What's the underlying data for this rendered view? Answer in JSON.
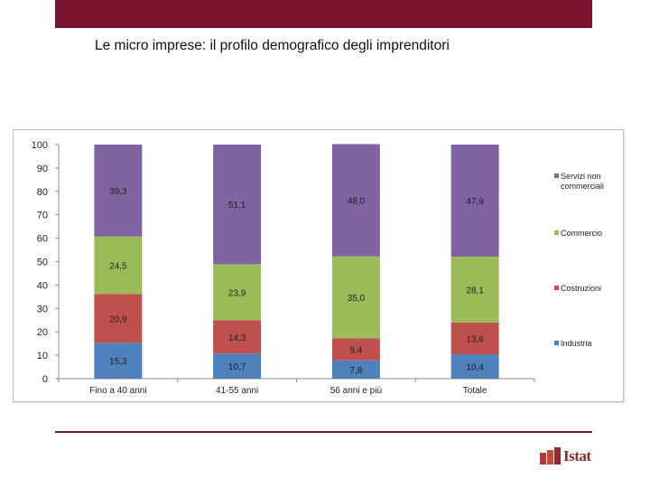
{
  "slide": {
    "title": "Le micro imprese: il profilo demografico degli imprenditori"
  },
  "logo": {
    "text": "Istat"
  },
  "colors": {
    "header_bar": "#7a1530",
    "Industria": "#4f81bd",
    "Costruzioni": "#c0504d",
    "Commercio": "#9bbb59",
    "Servizi non commerciali": "#8064a2"
  },
  "chart_data": {
    "type": "bar",
    "stacked": true,
    "categories": [
      "Fino a 40 anni",
      "41-55 anni",
      "56 anni e più",
      "Totale"
    ],
    "series": [
      {
        "name": "Industria",
        "values": [
          15.3,
          10.7,
          7.8,
          10.4
        ],
        "labels": [
          "15,3",
          "10,7",
          "7,8",
          "10,4"
        ]
      },
      {
        "name": "Costruzioni",
        "values": [
          20.9,
          14.3,
          9.4,
          13.6
        ],
        "labels": [
          "20,9",
          "14,3",
          "9,4",
          "13,6"
        ]
      },
      {
        "name": "Commercio",
        "values": [
          24.5,
          23.9,
          35.0,
          28.1
        ],
        "labels": [
          "24,5",
          "23,9",
          "35,0",
          "28,1"
        ]
      },
      {
        "name": "Servizi non commerciali",
        "values": [
          39.3,
          51.1,
          48.0,
          47.9
        ],
        "labels": [
          "39,3",
          "51,1",
          "48,0",
          "47,9"
        ]
      }
    ],
    "legend_labels": [
      [
        "Servizi non",
        "commerciali"
      ],
      [
        "Commercio"
      ],
      [
        "Costruzioni"
      ],
      [
        "Industria"
      ]
    ],
    "legend_order": [
      "Servizi non commerciali",
      "Commercio",
      "Costruzioni",
      "Industria"
    ],
    "ylim": [
      0,
      100
    ],
    "yticks": [
      0,
      10,
      20,
      30,
      40,
      50,
      60,
      70,
      80,
      90,
      100
    ],
    "legend_position": "right",
    "grid": false
  }
}
